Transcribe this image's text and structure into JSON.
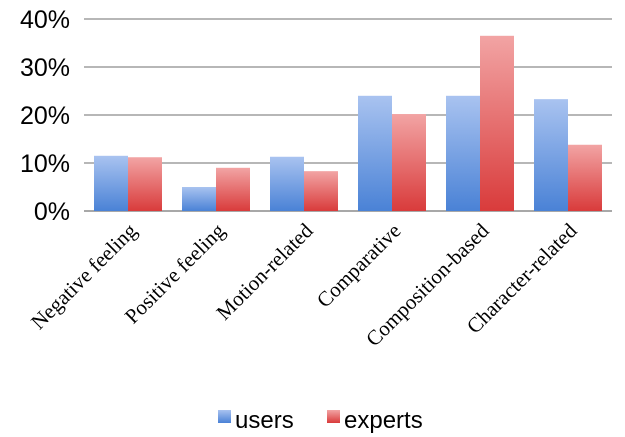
{
  "chart_data": {
    "type": "bar",
    "categories": [
      "Negative feeling",
      "Positive feeling",
      "Motion-related",
      "Comparative",
      "Composition-based",
      "Character-related"
    ],
    "series": [
      {
        "name": "users",
        "values": [
          11.5,
          5,
          11.3,
          24,
          24,
          23.3
        ]
      },
      {
        "name": "experts",
        "values": [
          11.2,
          9,
          8.3,
          20.2,
          36.5,
          13.8
        ]
      }
    ],
    "ylim": [
      0,
      40
    ],
    "yticks": [
      "0%",
      "10%",
      "20%",
      "30%",
      "40%"
    ],
    "ytick_values": [
      0,
      10,
      20,
      30,
      40
    ],
    "grid": true,
    "legend_position": "bottom",
    "colors": {
      "users_top": "#a9c3f0",
      "users_bottom": "#4a82d6",
      "experts_top": "#f2a4a4",
      "experts_bottom": "#d93b3b"
    }
  }
}
